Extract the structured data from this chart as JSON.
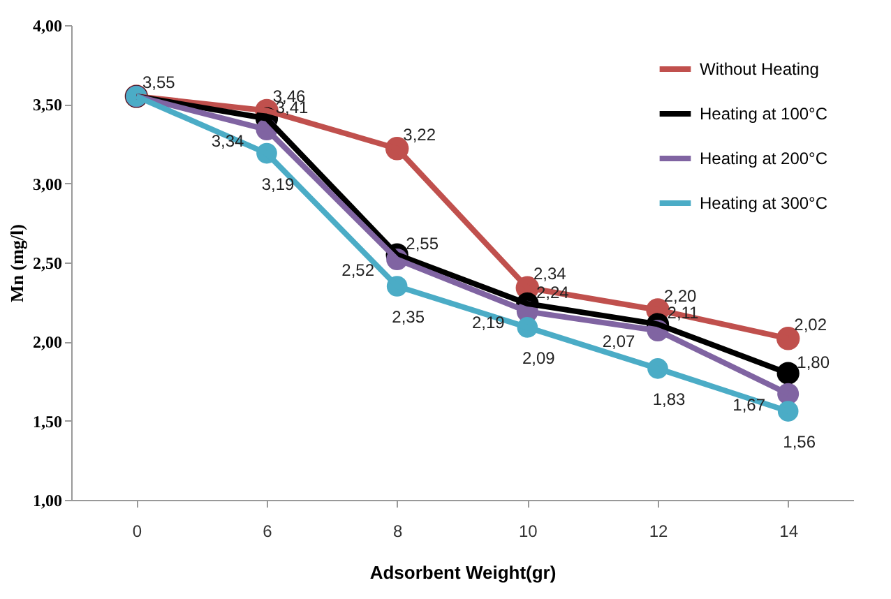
{
  "chart_data": {
    "type": "line",
    "xlabel": "Adsorbent Weight(gr)",
    "ylabel": "Mn (mg/l)",
    "categories": [
      "0",
      "6",
      "8",
      "10",
      "12",
      "14"
    ],
    "ylim": [
      1,
      4
    ],
    "yticks": [
      {
        "value": 1,
        "label": "1,00"
      },
      {
        "value": 1.5,
        "label": "1,50"
      },
      {
        "value": 2,
        "label": "2,00"
      },
      {
        "value": 2.5,
        "label": "2,50"
      },
      {
        "value": 3,
        "label": "3,00"
      },
      {
        "value": 3.5,
        "label": "3,50"
      },
      {
        "value": 4,
        "label": "4,00"
      }
    ],
    "grid": false,
    "legend": "top right",
    "marker": "circle",
    "line_style": "solid",
    "series": [
      {
        "name": "Without Heating",
        "color": "#c0504d",
        "values": [
          3.55,
          3.46,
          3.22,
          2.34,
          2.2,
          2.02
        ],
        "value_labels": [
          "3,55",
          "3,46",
          "3,22",
          "2,34",
          "2,20",
          "2,02"
        ]
      },
      {
        "name": "Heating at 100°C",
        "color": "#000000",
        "values": [
          3.55,
          3.41,
          2.55,
          2.24,
          2.11,
          1.8
        ],
        "value_labels": [
          null,
          "3,41",
          "2,55",
          "2,24",
          "2,11",
          "1,80"
        ]
      },
      {
        "name": "Heating at 200°C",
        "color": "#8064a2",
        "values": [
          3.55,
          3.34,
          2.52,
          2.19,
          2.07,
          1.67
        ],
        "value_labels": [
          null,
          "3,34",
          "2,52",
          "2,19",
          "2,07",
          "1,67"
        ]
      },
      {
        "name": "Heating at 300°C",
        "color": "#4bacc6",
        "values": [
          3.55,
          3.19,
          2.35,
          2.09,
          1.83,
          1.56
        ],
        "value_labels": [
          null,
          "3,19",
          "2,35",
          "2,09",
          "1,83",
          "1,56"
        ]
      }
    ]
  }
}
